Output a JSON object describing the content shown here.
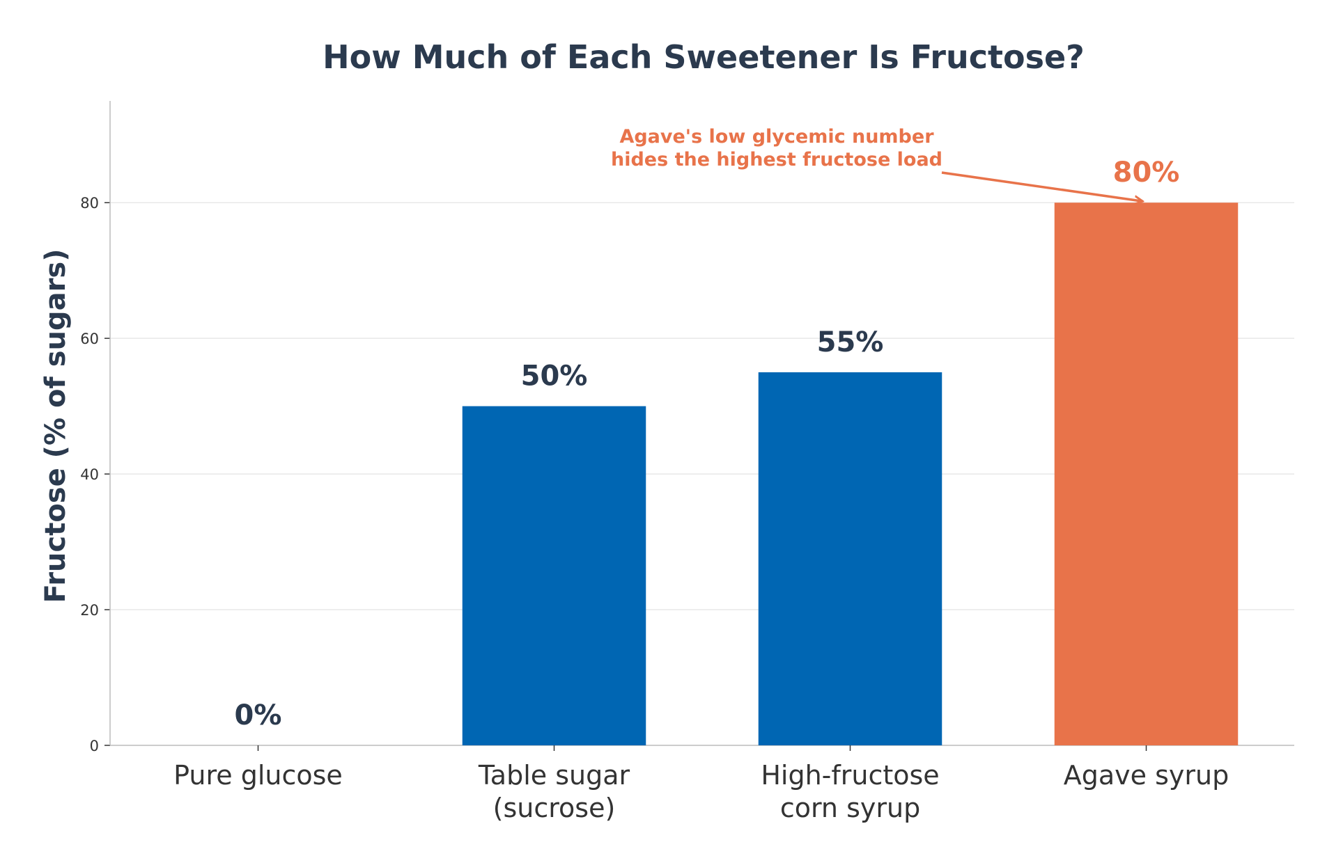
{
  "chart_data": {
    "type": "bar",
    "title": "How Much of Each Sweetener Is Fructose?",
    "xlabel": "",
    "ylabel": "Fructose (% of sugars)",
    "categories": [
      [
        "Pure glucose"
      ],
      [
        "Table sugar",
        "(sucrose)"
      ],
      [
        "High-fructose",
        "corn syrup"
      ],
      [
        "Agave syrup"
      ]
    ],
    "values": [
      0,
      50,
      55,
      80
    ],
    "value_labels": [
      "0%",
      "50%",
      "55%",
      "80%"
    ],
    "ylim": [
      0,
      95
    ],
    "yticks": [
      0,
      20,
      40,
      60,
      80
    ],
    "grid": "horizontal",
    "highlight_index": 3,
    "annotation": {
      "lines": [
        "Agave's low glycemic number",
        "hides the highest fructose load"
      ],
      "target_category_index": 3,
      "target_value": 80
    },
    "colors": {
      "bar": "#0066b3",
      "highlight": "#e8734a",
      "text": "#2b3a4e",
      "tick_text": "#333333",
      "grid": "#e8e8e8",
      "axis": "#bbbbbb"
    }
  }
}
